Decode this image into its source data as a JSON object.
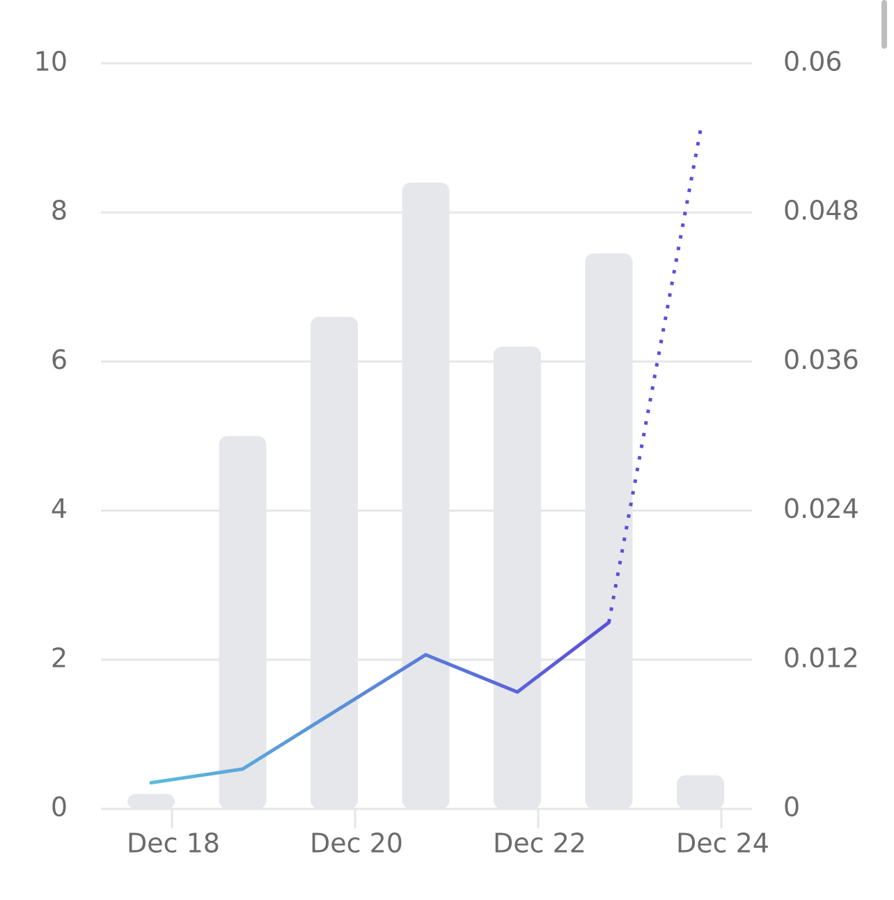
{
  "chart_data": {
    "type": "bar",
    "categories": [
      "Dec 18",
      null,
      "Dec 20",
      null,
      "Dec 22",
      null,
      "Dec 24"
    ],
    "values": [
      0.2,
      5.0,
      6.6,
      8.4,
      6.2,
      7.45,
      0.45
    ],
    "color": "#e6e7ea",
    "ylim": [
      0,
      10
    ],
    "yticks": [
      0,
      2,
      4,
      6,
      8,
      10
    ],
    "y2lim": [
      0,
      0.06
    ],
    "y2ticks": [
      0,
      0.012,
      0.024,
      0.036,
      0.048,
      0.06
    ],
    "grid": true,
    "series": [
      {
        "type": "line",
        "axis": "y2",
        "color": [
          "#5bbcdc",
          "#5a4fd9"
        ],
        "style": "solid",
        "values": [
          0.0021,
          0.0032,
          0.0078,
          0.0124,
          0.0094,
          0.015,
          null
        ]
      },
      {
        "type": "line",
        "axis": "y2",
        "color": [
          "#5a4fd9",
          "#5a4fd9"
        ],
        "style": "dotted",
        "values": [
          null,
          null,
          null,
          null,
          null,
          0.015,
          0.0546
        ]
      }
    ]
  }
}
